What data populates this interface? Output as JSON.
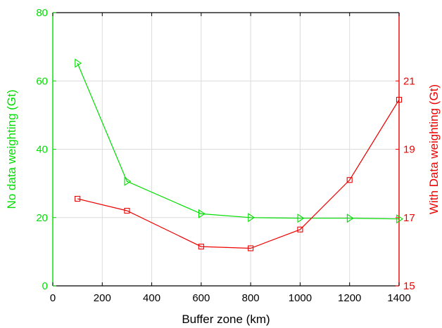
{
  "chart_data": {
    "type": "line",
    "title": "",
    "xlabel": "Buffer zone (km)",
    "ylabel_left": "No data weighting (Gt)",
    "ylabel_right": "With Data weighting (Gt)",
    "xlim": [
      0,
      1400
    ],
    "ylim_left": [
      0,
      80
    ],
    "ylim_right": [
      15,
      23
    ],
    "xticks": [
      "0",
      "200",
      "400",
      "600",
      "800",
      "1000",
      "1200",
      "1400"
    ],
    "yticks_left": [
      "0",
      "20",
      "40",
      "60",
      "80"
    ],
    "yticks_right": [
      "15",
      "17",
      "19",
      "21"
    ],
    "grid": true,
    "legend": "none",
    "x": [
      100,
      300,
      600,
      800,
      1000,
      1200,
      1400
    ],
    "series": [
      {
        "axis": "left",
        "color": "#00dd00",
        "marker": "triangle-right",
        "values": [
          65.2,
          30.6,
          21.1,
          20.0,
          19.8,
          19.8,
          19.6
        ]
      },
      {
        "axis": "right",
        "color": "#ee0000",
        "marker": "square",
        "values": [
          17.55,
          17.2,
          16.15,
          16.1,
          16.65,
          18.1,
          20.45
        ]
      }
    ]
  }
}
